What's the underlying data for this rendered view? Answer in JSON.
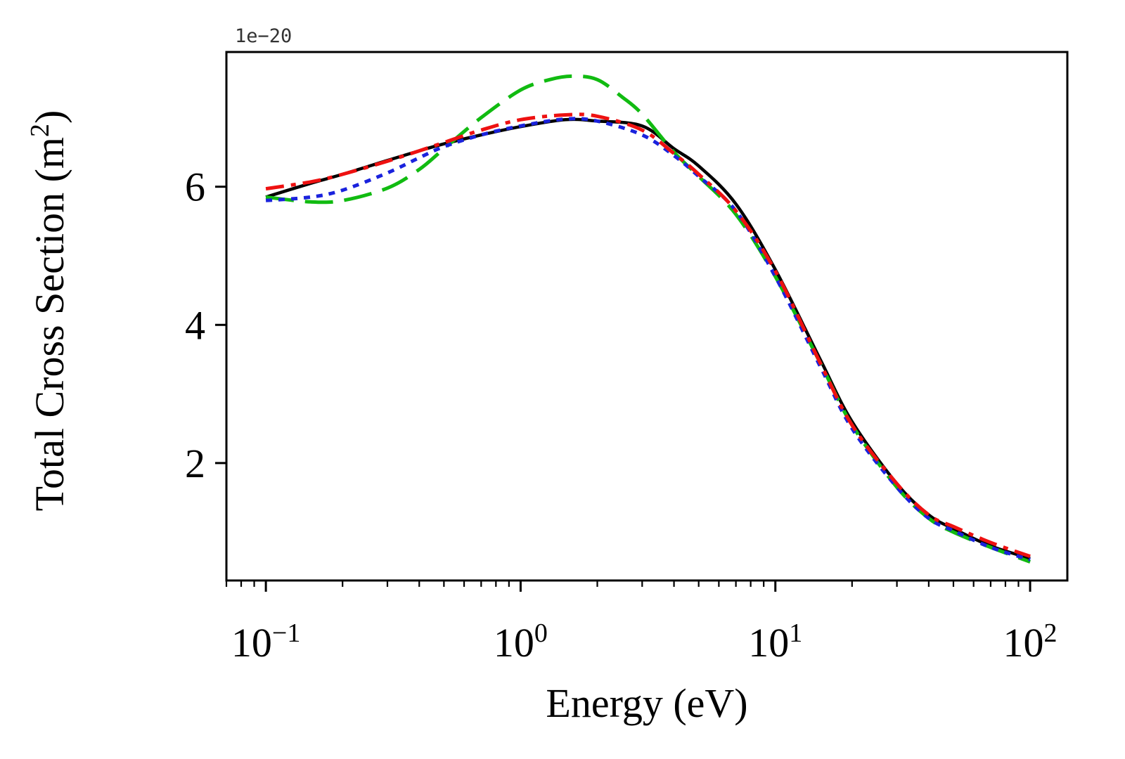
{
  "chart_data": {
    "type": "line",
    "title": "",
    "xlabel": "Energy (eV)",
    "ylabel_main": "Total Cross Section (m",
    "ylabel_sup": "2",
    "ylabel_close": ")",
    "offset_text": "1e−20",
    "xscale": "log",
    "xlim": [
      0.07,
      140
    ],
    "ylim": [
      0.3,
      7.95
    ],
    "x_ticks": [
      {
        "value": 0.1,
        "base": "10",
        "exp": "−1"
      },
      {
        "value": 1,
        "base": "10",
        "exp": "0"
      },
      {
        "value": 10,
        "base": "10",
        "exp": "1"
      },
      {
        "value": 100,
        "base": "10",
        "exp": "2"
      }
    ],
    "y_ticks": [
      {
        "value": 2,
        "label": "2"
      },
      {
        "value": 4,
        "label": "4"
      },
      {
        "value": 6,
        "label": "6"
      }
    ],
    "legend": "none",
    "grid": false,
    "series": [
      {
        "name": "black-solid",
        "color": "#000000",
        "dash": "solid",
        "x": [
          0.1,
          0.15,
          0.2,
          0.3,
          0.4,
          0.5,
          0.7,
          1.0,
          1.5,
          2.0,
          3.0,
          4.0,
          5.0,
          7.0,
          10,
          15,
          20,
          30,
          40,
          50,
          70,
          100
        ],
        "y": [
          5.85,
          6.05,
          6.18,
          6.38,
          6.52,
          6.62,
          6.75,
          6.87,
          6.97,
          6.95,
          6.88,
          6.55,
          6.3,
          5.75,
          4.8,
          3.5,
          2.6,
          1.7,
          1.25,
          1.05,
          0.8,
          0.62
        ]
      },
      {
        "name": "green-dashed",
        "color": "#11bb11",
        "dash": "long-dash",
        "x": [
          0.1,
          0.15,
          0.2,
          0.3,
          0.4,
          0.5,
          0.7,
          1.0,
          1.3,
          1.6,
          2.0,
          2.5,
          3.0,
          4.0,
          5.0,
          7.0,
          10,
          15,
          20,
          30,
          40,
          50,
          70,
          100
        ],
        "y": [
          5.85,
          5.78,
          5.8,
          5.98,
          6.25,
          6.55,
          7.0,
          7.4,
          7.55,
          7.6,
          7.55,
          7.3,
          7.05,
          6.5,
          6.15,
          5.6,
          4.7,
          3.45,
          2.55,
          1.65,
          1.2,
          1.0,
          0.78,
          0.57
        ]
      },
      {
        "name": "blue-dotted",
        "color": "#1a22dd",
        "dash": "dot",
        "x": [
          0.1,
          0.15,
          0.2,
          0.3,
          0.4,
          0.5,
          0.7,
          1.0,
          1.5,
          2.0,
          3.0,
          4.0,
          5.0,
          7.0,
          10,
          15,
          20,
          30,
          40,
          50,
          70,
          100
        ],
        "y": [
          5.8,
          5.85,
          5.95,
          6.2,
          6.42,
          6.58,
          6.75,
          6.88,
          6.98,
          6.95,
          6.75,
          6.45,
          6.15,
          5.65,
          4.7,
          3.4,
          2.5,
          1.65,
          1.2,
          1.02,
          0.78,
          0.6
        ]
      },
      {
        "name": "red-dashdot",
        "color": "#ee1111",
        "dash": "dash-dot",
        "x": [
          0.1,
          0.15,
          0.2,
          0.3,
          0.4,
          0.5,
          0.7,
          1.0,
          1.5,
          2.0,
          3.0,
          4.0,
          5.0,
          7.0,
          10,
          15,
          20,
          30,
          40,
          50,
          70,
          100
        ],
        "y": [
          5.97,
          6.07,
          6.18,
          6.37,
          6.52,
          6.64,
          6.82,
          6.97,
          7.04,
          7.02,
          6.82,
          6.48,
          6.18,
          5.65,
          4.78,
          3.45,
          2.55,
          1.7,
          1.25,
          1.08,
          0.85,
          0.65
        ]
      }
    ]
  }
}
